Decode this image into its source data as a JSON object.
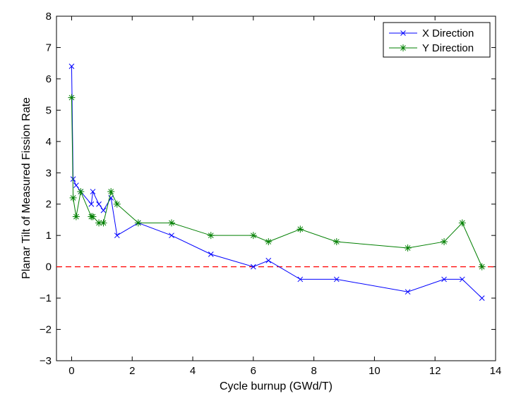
{
  "chart_data": {
    "type": "line",
    "title": "",
    "xlabel": "Cycle burnup (GWd/T)",
    "ylabel": "Planar Tilt of Measured Fission Rate",
    "xlim": [
      -0.5,
      14
    ],
    "ylim": [
      -3,
      8
    ],
    "xticks": [
      0,
      2,
      4,
      6,
      8,
      10,
      12,
      14
    ],
    "yticks": [
      -3,
      -2,
      -1,
      0,
      1,
      2,
      3,
      4,
      5,
      6,
      7,
      8
    ],
    "xtick_labels": [
      "0",
      "2",
      "4",
      "6",
      "8",
      "10",
      "12",
      "14"
    ],
    "ytick_labels": [
      "−3",
      "−2",
      "−1",
      "0",
      "1",
      "2",
      "3",
      "4",
      "5",
      "6",
      "7",
      "8"
    ],
    "grid": false,
    "legend_position": "top-right",
    "series": [
      {
        "name": "X Direction",
        "color": "#0000ff",
        "marker": "x",
        "x": [
          0.0,
          0.05,
          0.15,
          0.3,
          0.65,
          0.7,
          0.9,
          1.05,
          1.3,
          1.5,
          2.2,
          3.3,
          4.6,
          6.0,
          6.5,
          7.55,
          8.75,
          11.1,
          12.3,
          12.9,
          13.55
        ],
        "y": [
          6.4,
          2.8,
          2.6,
          2.4,
          2.0,
          2.4,
          2.0,
          1.8,
          2.2,
          1.0,
          1.4,
          1.0,
          0.4,
          0.0,
          0.2,
          -0.4,
          -0.4,
          -0.8,
          -0.4,
          -0.4,
          -1.0
        ]
      },
      {
        "name": "Y Direction",
        "color": "#007f00",
        "marker": "*",
        "x": [
          0.0,
          0.05,
          0.15,
          0.3,
          0.65,
          0.7,
          0.9,
          1.05,
          1.3,
          1.5,
          2.2,
          3.3,
          4.6,
          6.0,
          6.5,
          7.55,
          8.75,
          11.1,
          12.3,
          12.9,
          13.55
        ],
        "y": [
          5.4,
          2.2,
          1.6,
          2.4,
          1.6,
          1.6,
          1.4,
          1.4,
          2.4,
          2.0,
          1.4,
          1.4,
          1.0,
          1.0,
          0.8,
          1.2,
          0.8,
          0.6,
          0.8,
          1.4,
          0.0
        ]
      }
    ],
    "reference_line": {
      "y": 0,
      "color": "#ff0000",
      "style": "dashed"
    }
  }
}
